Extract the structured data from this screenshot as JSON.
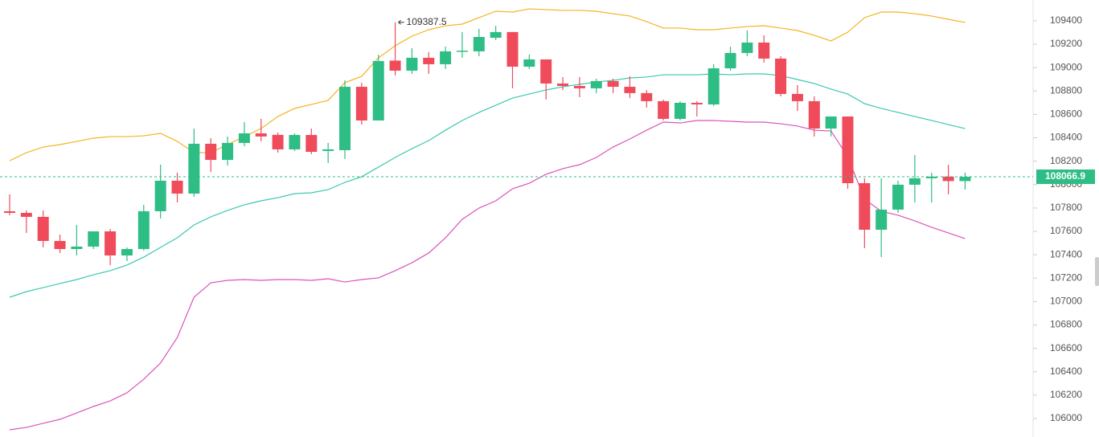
{
  "chart_data": {
    "type": "candlestick",
    "ylim": [
      105842,
      109578
    ],
    "yticks": [
      106000,
      106200,
      106400,
      106600,
      106800,
      107000,
      107200,
      107400,
      107600,
      107800,
      108000,
      108200,
      108400,
      108600,
      108800,
      109000,
      109200,
      109400
    ],
    "up_color": "#2ebd85",
    "down_color": "#ef4b5b",
    "open": [
      107772,
      107758,
      107724,
      107518,
      107449,
      107470,
      107600,
      107394,
      107449,
      107772,
      108033,
      107923,
      108349,
      108211,
      108356,
      108438,
      108425,
      108301,
      108424,
      108287,
      108294,
      108836,
      108548,
      109060,
      108974,
      109084,
      109029,
      109139,
      109139,
      109255,
      109304,
      109008,
      109070,
      108864,
      108843,
      108823,
      108885,
      108836,
      108782,
      108713,
      108562,
      108699,
      108685,
      108994,
      109125,
      109214,
      109077,
      108775,
      108713,
      108479,
      108582,
      108012,
      107614,
      107786,
      107999,
      108054,
      108068,
      108030
    ],
    "high": [
      107916,
      107779,
      107779,
      107573,
      107655,
      107600,
      107621,
      107463,
      107827,
      108170,
      108102,
      108479,
      108397,
      108411,
      108534,
      108562,
      108445,
      108438,
      108479,
      108356,
      108891,
      108871,
      109111,
      109387.5,
      109166,
      109132,
      109180,
      109304,
      109331,
      109358,
      109304,
      109111,
      109070,
      108919,
      108919,
      108905,
      108905,
      108926,
      108809,
      108727,
      108713,
      108713,
      109029,
      109180,
      109317,
      109276,
      109097,
      108850,
      108754,
      108582,
      108582,
      108054,
      108054,
      108033,
      108253,
      108102,
      108170,
      108102
    ],
    "low": [
      107738,
      107587,
      107463,
      107415,
      107394,
      107449,
      107312,
      107346,
      107435,
      107710,
      107847,
      107896,
      108108,
      108163,
      108328,
      108369,
      108273,
      108287,
      108260,
      108184,
      108218,
      108514,
      108548,
      108933,
      108946,
      108946,
      108988,
      109084,
      109097,
      109235,
      108823,
      108988,
      108727,
      108809,
      108747,
      108782,
      108782,
      108740,
      108658,
      108548,
      108548,
      108582,
      108672,
      108974,
      109097,
      109043,
      108754,
      108630,
      108411,
      108411,
      107964,
      107456,
      107380,
      107758,
      107847,
      107847,
      107916,
      107957
    ],
    "close": [
      107758,
      107724,
      107518,
      107449,
      107470,
      107600,
      107394,
      107449,
      107772,
      108033,
      107923,
      108349,
      108211,
      108356,
      108438,
      108411,
      108301,
      108424,
      108280,
      108301,
      108836,
      108548,
      109056,
      108974,
      109084,
      109029,
      109139,
      109145,
      109262,
      109304,
      109008,
      109070,
      108864,
      108843,
      108823,
      108885,
      108836,
      108782,
      108713,
      108562,
      108699,
      108685,
      108994,
      109125,
      109214,
      109077,
      108775,
      108713,
      108479,
      108582,
      108012,
      107614,
      107786,
      107999,
      108054,
      108068,
      108030,
      108066.9
    ],
    "bands": [
      {
        "color": "#f5b321",
        "values": [
          108204,
          108273,
          108321,
          108342,
          108369,
          108397,
          108410,
          108410,
          108417,
          108438,
          108369,
          108273,
          108273,
          108342,
          108410,
          108479,
          108582,
          108651,
          108685,
          108720,
          108871,
          108926,
          109083,
          109187,
          109269,
          109324,
          109358,
          109372,
          109427,
          109482,
          109475,
          109502,
          109496,
          109489,
          109489,
          109482,
          109461,
          109441,
          109393,
          109338,
          109338,
          109324,
          109324,
          109338,
          109351,
          109358,
          109338,
          109317,
          109276,
          109228,
          109303,
          109427,
          109475,
          109475,
          109461,
          109441,
          109413,
          109386
        ]
      },
      {
        "color": "#3cc8b0",
        "values": [
          107037,
          107085,
          107119,
          107154,
          107188,
          107229,
          107264,
          107312,
          107380,
          107463,
          107545,
          107655,
          107724,
          107779,
          107827,
          107861,
          107888,
          107923,
          107930,
          107957,
          108019,
          108067,
          108149,
          108232,
          108307,
          108376,
          108465,
          108548,
          108617,
          108678,
          108740,
          108774,
          108809,
          108836,
          108857,
          108877,
          108891,
          108912,
          108919,
          108939,
          108939,
          108939,
          108946,
          108939,
          108946,
          108946,
          108932,
          108898,
          108864,
          108816,
          108774,
          108692,
          108651,
          108617,
          108582,
          108548,
          108513,
          108479
        ]
      },
      {
        "color": "#d855b8",
        "values": [
          105904,
          105924,
          105959,
          105993,
          106048,
          106103,
          106151,
          106220,
          106336,
          106474,
          106693,
          107037,
          107160,
          107181,
          107188,
          107181,
          107188,
          107188,
          107181,
          107195,
          107167,
          107188,
          107202,
          107264,
          107332,
          107415,
          107545,
          107703,
          107799,
          107861,
          107964,
          108012,
          108088,
          108136,
          108170,
          108232,
          108321,
          108390,
          108465,
          108534,
          108527,
          108548,
          108548,
          108541,
          108534,
          108534,
          108520,
          108500,
          108465,
          108458,
          108239,
          107875,
          107772,
          107738,
          107690,
          107635,
          107587,
          107538
        ]
      }
    ]
  }
}
